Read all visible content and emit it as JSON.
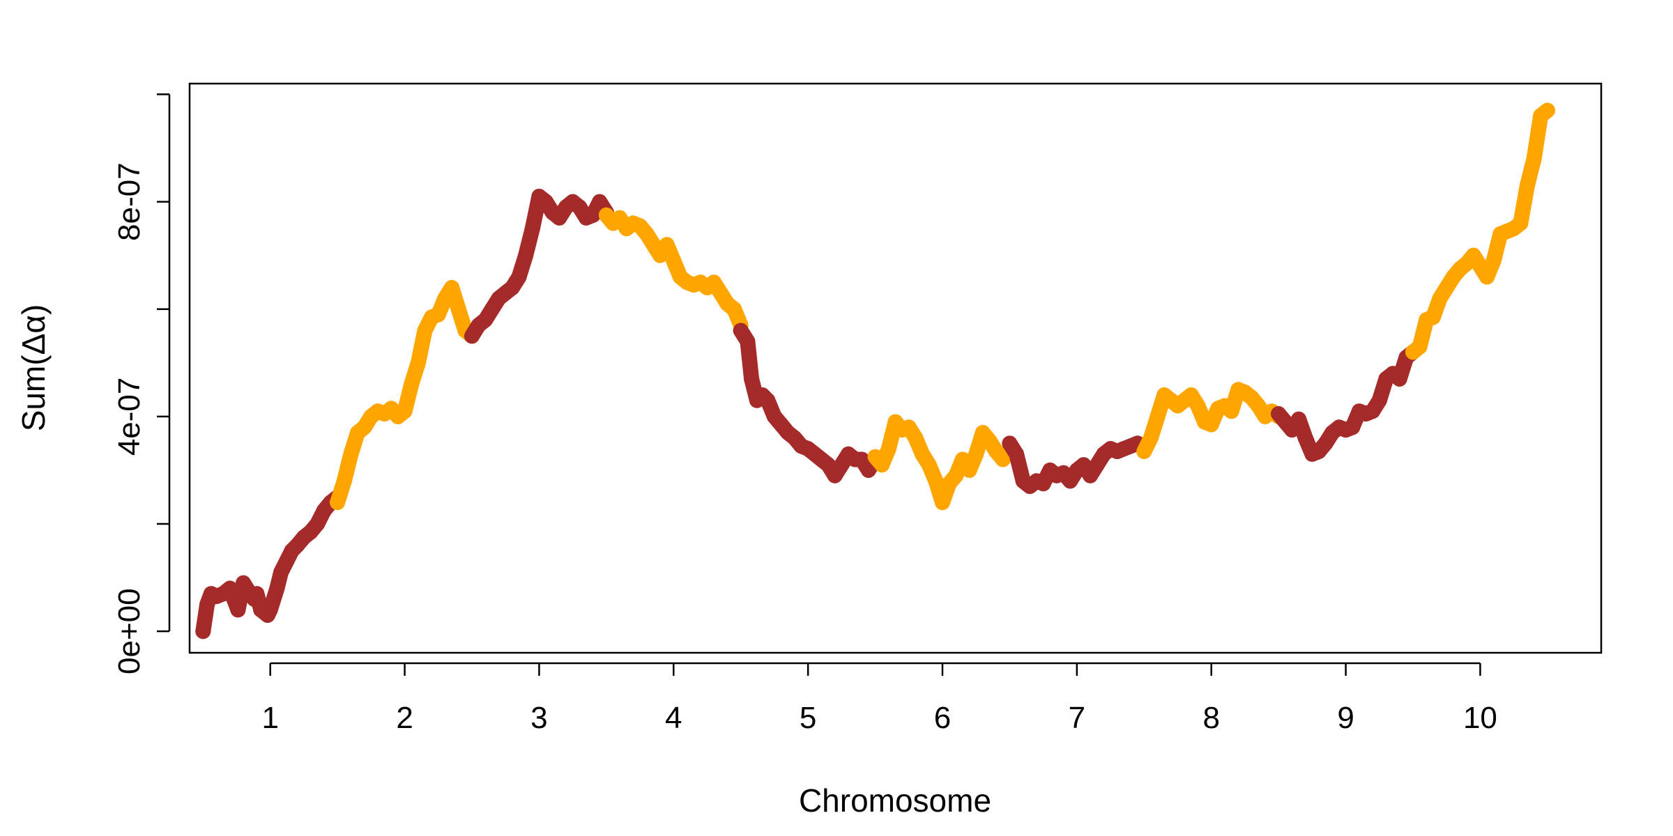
{
  "chart_data": {
    "type": "line",
    "title": "",
    "xlabel": "Chromosome",
    "ylabel": "Sum(Δα)",
    "xlim": [
      0.4,
      10.9
    ],
    "ylim": [
      -4e-08,
      1.02e-06
    ],
    "x_ticks": [
      1,
      2,
      3,
      4,
      5,
      6,
      7,
      8,
      9,
      10
    ],
    "x_tick_labels": [
      "1",
      "2",
      "3",
      "4",
      "5",
      "6",
      "7",
      "8",
      "9",
      "10"
    ],
    "y_ticks": [
      0,
      2e-07,
      4e-07,
      6e-07,
      8e-07,
      1e-06
    ],
    "y_tick_labels": [
      "0e+00",
      "",
      "4e-07",
      "",
      "8e-07",
      ""
    ],
    "grid": false,
    "legend": "none",
    "colors": [
      "#A52A2A",
      "#FFA500"
    ],
    "series": [
      {
        "chromosome": "1",
        "color": "#A52A2A",
        "points": [
          [
            0.5,
            0.0
          ],
          [
            0.53,
            5e-08
          ],
          [
            0.56,
            7e-08
          ],
          [
            0.6,
            6.5e-08
          ],
          [
            0.65,
            7e-08
          ],
          [
            0.7,
            8e-08
          ],
          [
            0.73,
            6e-08
          ],
          [
            0.76,
            4e-08
          ],
          [
            0.8,
            9e-08
          ],
          [
            0.85,
            7e-08
          ],
          [
            0.88,
            6e-08
          ],
          [
            0.9,
            7e-08
          ],
          [
            0.93,
            4e-08
          ],
          [
            0.98,
            3e-08
          ],
          [
            1.0,
            4e-08
          ],
          [
            1.05,
            8e-08
          ],
          [
            1.08,
            1.1e-07
          ],
          [
            1.12,
            1.3e-07
          ],
          [
            1.16,
            1.5e-07
          ],
          [
            1.2,
            1.6e-07
          ],
          [
            1.25,
            1.75e-07
          ],
          [
            1.3,
            1.85e-07
          ],
          [
            1.35,
            2e-07
          ],
          [
            1.4,
            2.25e-07
          ],
          [
            1.45,
            2.4e-07
          ],
          [
            1.5,
            2.5e-07
          ]
        ]
      },
      {
        "chromosome": "2",
        "color": "#FFA500",
        "points": [
          [
            1.5,
            2.4e-07
          ],
          [
            1.55,
            2.8e-07
          ],
          [
            1.6,
            3.3e-07
          ],
          [
            1.65,
            3.7e-07
          ],
          [
            1.7,
            3.8e-07
          ],
          [
            1.75,
            4e-07
          ],
          [
            1.8,
            4.1e-07
          ],
          [
            1.85,
            4.05e-07
          ],
          [
            1.9,
            4.15e-07
          ],
          [
            1.95,
            4e-07
          ],
          [
            2.0,
            4.1e-07
          ],
          [
            2.05,
            4.6e-07
          ],
          [
            2.1,
            5e-07
          ],
          [
            2.15,
            5.6e-07
          ],
          [
            2.2,
            5.85e-07
          ],
          [
            2.25,
            5.9e-07
          ],
          [
            2.3,
            6.2e-07
          ],
          [
            2.35,
            6.4e-07
          ],
          [
            2.4,
            6e-07
          ],
          [
            2.45,
            5.6e-07
          ],
          [
            2.5,
            5.5e-07
          ]
        ]
      },
      {
        "chromosome": "3",
        "color": "#A52A2A",
        "points": [
          [
            2.5,
            5.5e-07
          ],
          [
            2.55,
            5.7e-07
          ],
          [
            2.6,
            5.8e-07
          ],
          [
            2.65,
            6e-07
          ],
          [
            2.7,
            6.2e-07
          ],
          [
            2.75,
            6.3e-07
          ],
          [
            2.8,
            6.4e-07
          ],
          [
            2.85,
            6.6e-07
          ],
          [
            2.9,
            7e-07
          ],
          [
            2.95,
            7.5e-07
          ],
          [
            3.0,
            8.1e-07
          ],
          [
            3.05,
            8e-07
          ],
          [
            3.1,
            7.8e-07
          ],
          [
            3.15,
            7.7e-07
          ],
          [
            3.2,
            7.9e-07
          ],
          [
            3.25,
            8e-07
          ],
          [
            3.3,
            7.9e-07
          ],
          [
            3.35,
            7.7e-07
          ],
          [
            3.4,
            7.75e-07
          ],
          [
            3.45,
            8e-07
          ],
          [
            3.5,
            7.8e-07
          ]
        ]
      },
      {
        "chromosome": "4",
        "color": "#FFA500",
        "points": [
          [
            3.5,
            7.75e-07
          ],
          [
            3.55,
            7.6e-07
          ],
          [
            3.6,
            7.7e-07
          ],
          [
            3.65,
            7.5e-07
          ],
          [
            3.7,
            7.6e-07
          ],
          [
            3.75,
            7.55e-07
          ],
          [
            3.8,
            7.4e-07
          ],
          [
            3.85,
            7.2e-07
          ],
          [
            3.9,
            7e-07
          ],
          [
            3.95,
            7.2e-07
          ],
          [
            4.0,
            6.9e-07
          ],
          [
            4.05,
            6.6e-07
          ],
          [
            4.1,
            6.5e-07
          ],
          [
            4.15,
            6.45e-07
          ],
          [
            4.2,
            6.5e-07
          ],
          [
            4.25,
            6.4e-07
          ],
          [
            4.3,
            6.5e-07
          ],
          [
            4.35,
            6.3e-07
          ],
          [
            4.4,
            6.1e-07
          ],
          [
            4.45,
            6e-07
          ],
          [
            4.5,
            5.7e-07
          ]
        ]
      },
      {
        "chromosome": "5",
        "color": "#A52A2A",
        "points": [
          [
            4.5,
            5.6e-07
          ],
          [
            4.55,
            5.4e-07
          ],
          [
            4.58,
            4.7e-07
          ],
          [
            4.62,
            4.3e-07
          ],
          [
            4.66,
            4.4e-07
          ],
          [
            4.7,
            4.3e-07
          ],
          [
            4.75,
            4e-07
          ],
          [
            4.8,
            3.85e-07
          ],
          [
            4.85,
            3.7e-07
          ],
          [
            4.9,
            3.6e-07
          ],
          [
            4.95,
            3.45e-07
          ],
          [
            5.0,
            3.4e-07
          ],
          [
            5.05,
            3.3e-07
          ],
          [
            5.1,
            3.2e-07
          ],
          [
            5.15,
            3.1e-07
          ],
          [
            5.2,
            2.9e-07
          ],
          [
            5.25,
            3.1e-07
          ],
          [
            5.3,
            3.3e-07
          ],
          [
            5.35,
            3.2e-07
          ],
          [
            5.4,
            3.2e-07
          ],
          [
            5.45,
            3e-07
          ],
          [
            5.5,
            3.2e-07
          ]
        ]
      },
      {
        "chromosome": "6",
        "color": "#FFA500",
        "points": [
          [
            5.5,
            3.25e-07
          ],
          [
            5.55,
            3.1e-07
          ],
          [
            5.6,
            3.4e-07
          ],
          [
            5.65,
            3.9e-07
          ],
          [
            5.7,
            3.75e-07
          ],
          [
            5.75,
            3.8e-07
          ],
          [
            5.8,
            3.6e-07
          ],
          [
            5.85,
            3.3e-07
          ],
          [
            5.9,
            3.1e-07
          ],
          [
            5.95,
            2.8e-07
          ],
          [
            6.0,
            2.4e-07
          ],
          [
            6.05,
            2.75e-07
          ],
          [
            6.1,
            2.9e-07
          ],
          [
            6.15,
            3.2e-07
          ],
          [
            6.2,
            3e-07
          ],
          [
            6.25,
            3.3e-07
          ],
          [
            6.3,
            3.7e-07
          ],
          [
            6.35,
            3.55e-07
          ],
          [
            6.4,
            3.35e-07
          ],
          [
            6.45,
            3.2e-07
          ],
          [
            6.5,
            3.4e-07
          ]
        ]
      },
      {
        "chromosome": "7",
        "color": "#A52A2A",
        "points": [
          [
            6.5,
            3.5e-07
          ],
          [
            6.55,
            3.3e-07
          ],
          [
            6.6,
            2.8e-07
          ],
          [
            6.65,
            2.7e-07
          ],
          [
            6.7,
            2.8e-07
          ],
          [
            6.75,
            2.75e-07
          ],
          [
            6.8,
            3e-07
          ],
          [
            6.85,
            2.9e-07
          ],
          [
            6.9,
            2.95e-07
          ],
          [
            6.95,
            2.8e-07
          ],
          [
            7.0,
            3e-07
          ],
          [
            7.05,
            3.1e-07
          ],
          [
            7.1,
            2.9e-07
          ],
          [
            7.15,
            3.1e-07
          ],
          [
            7.2,
            3.3e-07
          ],
          [
            7.25,
            3.4e-07
          ],
          [
            7.3,
            3.35e-07
          ],
          [
            7.35,
            3.4e-07
          ],
          [
            7.4,
            3.45e-07
          ],
          [
            7.45,
            3.5e-07
          ],
          [
            7.5,
            3.4e-07
          ]
        ]
      },
      {
        "chromosome": "8",
        "color": "#FFA500",
        "points": [
          [
            7.5,
            3.35e-07
          ],
          [
            7.55,
            3.6e-07
          ],
          [
            7.6,
            4e-07
          ],
          [
            7.65,
            4.4e-07
          ],
          [
            7.7,
            4.3e-07
          ],
          [
            7.75,
            4.2e-07
          ],
          [
            7.8,
            4.3e-07
          ],
          [
            7.85,
            4.4e-07
          ],
          [
            7.9,
            4.2e-07
          ],
          [
            7.95,
            3.9e-07
          ],
          [
            8.0,
            3.85e-07
          ],
          [
            8.05,
            4.15e-07
          ],
          [
            8.1,
            4.2e-07
          ],
          [
            8.15,
            4.1e-07
          ],
          [
            8.2,
            4.5e-07
          ],
          [
            8.25,
            4.45e-07
          ],
          [
            8.3,
            4.35e-07
          ],
          [
            8.35,
            4.2e-07
          ],
          [
            8.4,
            4e-07
          ],
          [
            8.45,
            4.1e-07
          ],
          [
            8.5,
            4e-07
          ]
        ]
      },
      {
        "chromosome": "9",
        "color": "#A52A2A",
        "points": [
          [
            8.5,
            4.05e-07
          ],
          [
            8.55,
            3.9e-07
          ],
          [
            8.6,
            3.75e-07
          ],
          [
            8.65,
            3.95e-07
          ],
          [
            8.7,
            3.6e-07
          ],
          [
            8.75,
            3.3e-07
          ],
          [
            8.8,
            3.35e-07
          ],
          [
            8.85,
            3.5e-07
          ],
          [
            8.9,
            3.7e-07
          ],
          [
            8.95,
            3.8e-07
          ],
          [
            9.0,
            3.75e-07
          ],
          [
            9.05,
            3.8e-07
          ],
          [
            9.1,
            4.1e-07
          ],
          [
            9.15,
            4.05e-07
          ],
          [
            9.2,
            4.1e-07
          ],
          [
            9.25,
            4.3e-07
          ],
          [
            9.3,
            4.7e-07
          ],
          [
            9.35,
            4.8e-07
          ],
          [
            9.4,
            4.7e-07
          ],
          [
            9.45,
            5.1e-07
          ],
          [
            9.5,
            5.2e-07
          ]
        ]
      },
      {
        "chromosome": "10",
        "color": "#FFA500",
        "points": [
          [
            9.5,
            5.2e-07
          ],
          [
            9.55,
            5.3e-07
          ],
          [
            9.6,
            5.8e-07
          ],
          [
            9.65,
            5.85e-07
          ],
          [
            9.7,
            6.2e-07
          ],
          [
            9.75,
            6.4e-07
          ],
          [
            9.8,
            6.6e-07
          ],
          [
            9.85,
            6.75e-07
          ],
          [
            9.9,
            6.85e-07
          ],
          [
            9.95,
            7e-07
          ],
          [
            10.0,
            6.8e-07
          ],
          [
            10.05,
            6.6e-07
          ],
          [
            10.1,
            6.9e-07
          ],
          [
            10.15,
            7.4e-07
          ],
          [
            10.2,
            7.45e-07
          ],
          [
            10.25,
            7.5e-07
          ],
          [
            10.3,
            7.6e-07
          ],
          [
            10.35,
            8.3e-07
          ],
          [
            10.4,
            8.8e-07
          ],
          [
            10.45,
            9.6e-07
          ],
          [
            10.5,
            9.7e-07
          ]
        ]
      }
    ]
  }
}
